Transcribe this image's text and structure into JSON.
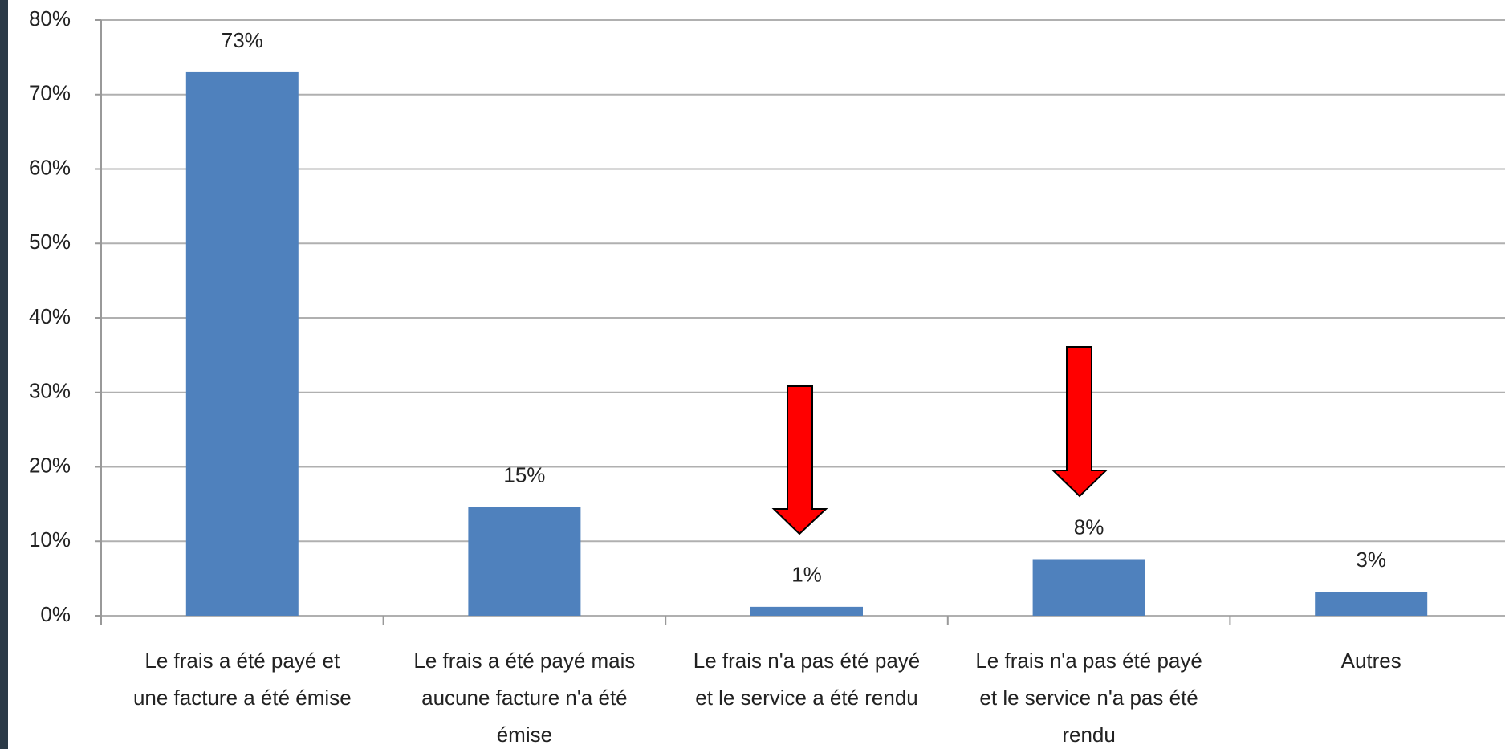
{
  "chart_data": {
    "type": "bar",
    "categories": [
      "Le frais a été payé et une facture a été émise",
      "Le frais a été payé mais aucune facture n'a été émise",
      "Le frais n'a pas été payé et le service a été rendu",
      "Le frais  n'a pas été payé et le service n'a pas été rendu",
      "Autres"
    ],
    "values": [
      73,
      14.6,
      1.2,
      7.6,
      3.2
    ],
    "value_labels": [
      "73%",
      "15%",
      "1%",
      "8%",
      "3%"
    ],
    "color": "#4f81bd",
    "ylim": [
      0,
      80
    ],
    "yticks": [
      {
        "value": 0,
        "label": "0%"
      },
      {
        "value": 10,
        "label": "10%"
      },
      {
        "value": 20,
        "label": "20%"
      },
      {
        "value": 30,
        "label": "30%"
      },
      {
        "value": 40,
        "label": "40%"
      },
      {
        "value": 50,
        "label": "50%"
      },
      {
        "value": 60,
        "label": "60%"
      },
      {
        "value": 70,
        "label": "70%"
      },
      {
        "value": 80,
        "label": "80%"
      }
    ],
    "grid": true
  }
}
